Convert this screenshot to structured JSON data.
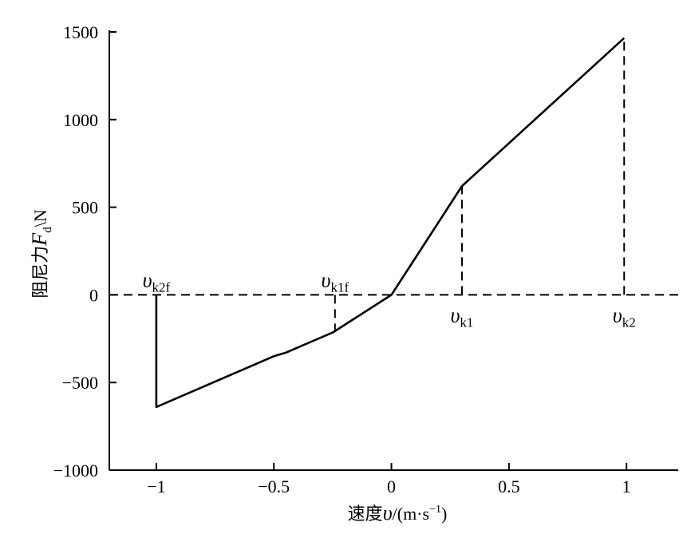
{
  "chart_data": {
    "type": "line",
    "title": "",
    "xlabel": "速度υ/(m·s⁻¹)",
    "ylabel": "阻尼力F_d/N",
    "xlabel_parts": {
      "prefix": "速度",
      "var": "υ",
      "unit": "/(m·s",
      "sup": "−1",
      "close": ")"
    },
    "ylabel_parts": {
      "prefix": "阻尼力",
      "var": "F",
      "sub": "d",
      "unit": "\\N"
    },
    "xlim": [
      -1.2,
      1.22
    ],
    "ylim": [
      -1000,
      1500
    ],
    "xticks": [
      -1,
      -0.5,
      0,
      0.5,
      1
    ],
    "xtick_labels": [
      "−1",
      "−0.5",
      "0",
      "0.5",
      "1"
    ],
    "yticks": [
      -1000,
      -500,
      0,
      500,
      1000,
      1500
    ],
    "ytick_labels": [
      "−1000",
      "−500",
      "0",
      "500",
      "1000",
      "1500"
    ],
    "grid": false,
    "series": [
      {
        "x": [
          -1,
          -1,
          -0.5,
          -0.45,
          -0.25,
          0,
          0.3,
          0.99
        ],
        "y": [
          0,
          -640,
          -350,
          -330,
          -215,
          0,
          620,
          1465
        ]
      }
    ],
    "reference_lines": [
      {
        "type": "horizontal",
        "y": 0,
        "style": "dashed"
      },
      {
        "type": "vertical",
        "x": -0.24,
        "y_from": 0,
        "y_to": -200,
        "style": "dashed"
      },
      {
        "type": "vertical",
        "x": 0.3,
        "y_from": 0,
        "y_to": 620,
        "style": "dashed"
      },
      {
        "type": "vertical",
        "x": 0.99,
        "y_from": 0,
        "y_to": 1465,
        "style": "dashed"
      }
    ],
    "annotations": [
      {
        "id": "vk2f",
        "var": "υ",
        "sub": "k2f",
        "x": -1,
        "y": 0,
        "position": "above"
      },
      {
        "id": "vk1f",
        "var": "υ",
        "sub": "k1f",
        "x": -0.24,
        "y": 0,
        "position": "above"
      },
      {
        "id": "vk1",
        "var": "υ",
        "sub": "k1",
        "x": 0.3,
        "y": 0,
        "position": "below"
      },
      {
        "id": "vk2",
        "var": "υ",
        "sub": "k2",
        "x": 0.99,
        "y": 0,
        "position": "below"
      }
    ]
  }
}
